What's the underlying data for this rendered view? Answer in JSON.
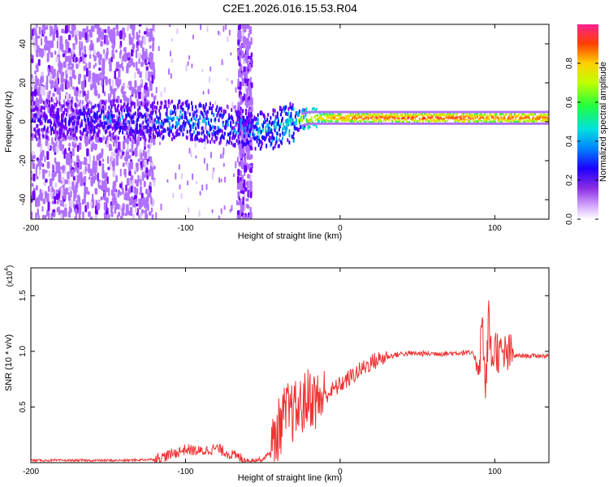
{
  "figure_title": "C2E1.2026.016.15.53.R04",
  "colors": {
    "snr_line": "#ee3333",
    "spectral_palette": [
      "#e0c8ff",
      "#b070ff",
      "#6f00ff",
      "#2200ff",
      "#00a0ff",
      "#00e0c0",
      "#40f040",
      "#c0f000",
      "#ffd000",
      "#ff7000",
      "#ff1040",
      "#ff3090"
    ]
  },
  "chart_data": [
    {
      "id": "spectrogram",
      "type": "heatmap",
      "title": "C2E1.2026.016.15.53.R04",
      "xlabel": "Height of straight line (km)",
      "ylabel": "Frequency (Hz)",
      "xlim": [
        -200,
        135
      ],
      "ylim": [
        -50,
        50
      ],
      "x_ticks": [
        -200,
        -100,
        0,
        100
      ],
      "y_ticks": [
        -40,
        -20,
        0,
        20,
        40
      ],
      "colorbar": {
        "label": "Normalized spectral amplitude",
        "range": [
          0,
          1
        ],
        "ticks": [
          "0.0",
          "0.2",
          "0.4",
          "0.6",
          "0.8"
        ]
      },
      "signal_trace": [
        {
          "height_km": -180,
          "freq_hz": 1,
          "amplitude": 0.25
        },
        {
          "height_km": -150,
          "freq_hz": 1,
          "amplitude": 0.3
        },
        {
          "height_km": -120,
          "freq_hz": 0,
          "amplitude": 0.3
        },
        {
          "height_km": -110,
          "freq_hz": 1,
          "amplitude": 0.35
        },
        {
          "height_km": -100,
          "freq_hz": 1,
          "amplitude": 0.38
        },
        {
          "height_km": -90,
          "freq_hz": 0,
          "amplitude": 0.38
        },
        {
          "height_km": -80,
          "freq_hz": -1,
          "amplitude": 0.36
        },
        {
          "height_km": -70,
          "freq_hz": -2,
          "amplitude": 0.34
        },
        {
          "height_km": -60,
          "freq_hz": -4,
          "amplitude": 0.35
        },
        {
          "height_km": -50,
          "freq_hz": -5,
          "amplitude": 0.4
        },
        {
          "height_km": -40,
          "freq_hz": -3,
          "amplitude": 0.42
        },
        {
          "height_km": -30,
          "freq_hz": 0,
          "amplitude": 0.5
        },
        {
          "height_km": -20,
          "freq_hz": 2,
          "amplitude": 0.7
        },
        {
          "height_km": 0,
          "freq_hz": 2,
          "amplitude": 0.85
        },
        {
          "height_km": 20,
          "freq_hz": 2,
          "amplitude": 0.9
        },
        {
          "height_km": 40,
          "freq_hz": 2,
          "amplitude": 0.92
        },
        {
          "height_km": 60,
          "freq_hz": 2,
          "amplitude": 0.93
        },
        {
          "height_km": 80,
          "freq_hz": 2,
          "amplitude": 0.93
        },
        {
          "height_km": 90,
          "freq_hz": 2,
          "amplitude": 0.85
        },
        {
          "height_km": 100,
          "freq_hz": 2,
          "amplitude": 0.88
        },
        {
          "height_km": 110,
          "freq_hz": 2,
          "amplitude": 0.9
        },
        {
          "height_km": 120,
          "freq_hz": 2,
          "amplitude": 0.9
        },
        {
          "height_km": 135,
          "freq_hz": 2,
          "amplitude": 0.9
        }
      ]
    },
    {
      "id": "snr",
      "type": "line",
      "xlabel": "Height of straight line (km)",
      "ylabel": "SNR (10 * v/v)",
      "y_multiplier_label": "(x10",
      "y_multiplier_exponent": "4",
      "y_multiplier_suffix": ")",
      "xlim": [
        -200,
        135
      ],
      "ylim": [
        0,
        1.75
      ],
      "x_ticks": [
        -200,
        -100,
        0,
        100
      ],
      "y_ticks": [
        "0.5",
        "1.0",
        "1.5"
      ],
      "series": [
        {
          "name": "SNR",
          "x": [
            -200,
            -180,
            -160,
            -140,
            -120,
            -110,
            -100,
            -90,
            -80,
            -70,
            -60,
            -50,
            -45,
            -40,
            -35,
            -30,
            -25,
            -20,
            -15,
            -10,
            -5,
            0,
            10,
            20,
            30,
            40,
            50,
            60,
            70,
            80,
            85,
            90,
            92,
            94,
            96,
            98,
            100,
            104,
            108,
            112,
            120,
            135
          ],
          "y": [
            0.02,
            0.02,
            0.02,
            0.02,
            0.03,
            0.07,
            0.12,
            0.1,
            0.13,
            0.07,
            0.02,
            0.03,
            0.1,
            0.3,
            0.45,
            0.45,
            0.5,
            0.6,
            0.55,
            0.6,
            0.65,
            0.7,
            0.8,
            0.9,
            0.95,
            0.98,
            0.98,
            0.98,
            0.98,
            0.99,
            0.98,
            0.9,
            1.3,
            0.6,
            1.3,
            0.9,
            1.05,
            0.95,
            0.97,
            0.96,
            0.96,
            0.96
          ]
        }
      ]
    }
  ]
}
